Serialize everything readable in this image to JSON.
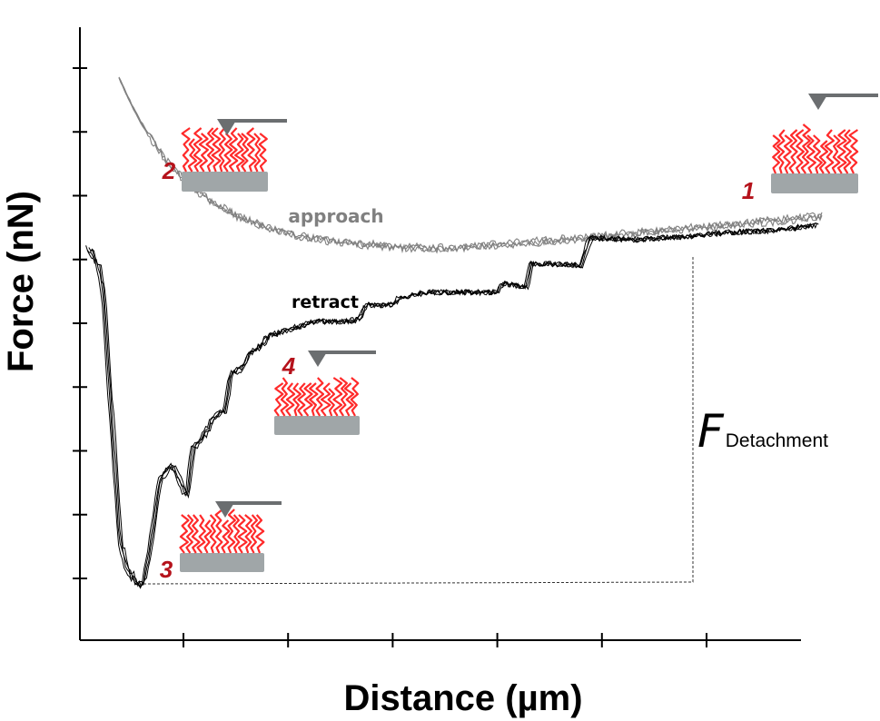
{
  "chart_data": {
    "type": "line",
    "title": "",
    "xlabel": "Distance (µm)",
    "ylabel": "Force (nN)",
    "x_tick_count": 6,
    "y_tick_count": 9,
    "tick_labels_shown": false,
    "grid": false,
    "series": [
      {
        "name": "approach",
        "color": "#808080"
      },
      {
        "name": "retract",
        "color": "#000000"
      }
    ],
    "annotations": {
      "detachment_symbol": "F",
      "detachment_subscript": "Detachment",
      "steps": [
        "1",
        "2",
        "3",
        "4"
      ]
    },
    "colors": {
      "polymer": "#ff2a2a",
      "substrate": "#a0a6a8",
      "cantilever": "#6b6e70",
      "step_label": "#b5121b"
    }
  }
}
